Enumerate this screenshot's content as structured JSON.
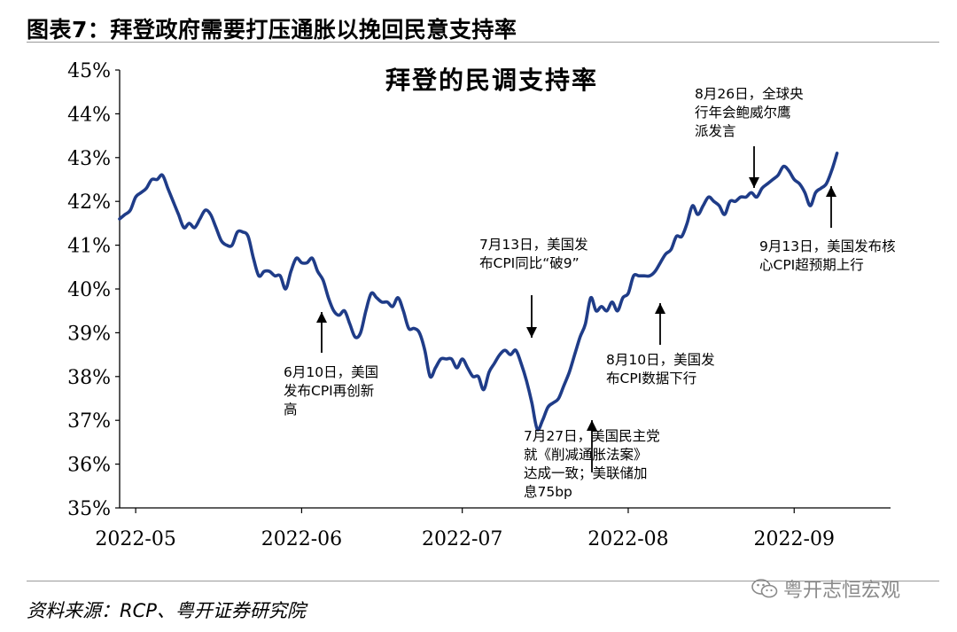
{
  "figure": {
    "title": "图表7：拜登政府需要打压通胀以挽回民意支持率",
    "source": "资料来源：RCP、粤开证券研究院",
    "watermark": "粤开志恒宏观"
  },
  "chart_data": {
    "type": "line",
    "title": "拜登的民调支持率",
    "xlabel": "",
    "ylabel": "",
    "x_ticks": [
      "2022-05",
      "2022-06",
      "2022-07",
      "2022-08",
      "2022-09"
    ],
    "x_tick_days": [
      0,
      31,
      61,
      92,
      123
    ],
    "y_ticks": [
      "35%",
      "36%",
      "37%",
      "38%",
      "39%",
      "40%",
      "41%",
      "42%",
      "43%",
      "44%",
      "45%"
    ],
    "ylim": [
      35,
      45
    ],
    "xlim_days": [
      -3,
      141
    ],
    "series": [
      {
        "name": "拜登的民调支持率",
        "color": "#1f3c88",
        "points": [
          [
            -3,
            41.6
          ],
          [
            -2,
            41.7
          ],
          [
            -1,
            41.8
          ],
          [
            0,
            42.1
          ],
          [
            1,
            42.2
          ],
          [
            2,
            42.3
          ],
          [
            3,
            42.5
          ],
          [
            4,
            42.5
          ],
          [
            5,
            42.6
          ],
          [
            6,
            42.3
          ],
          [
            7,
            42.0
          ],
          [
            8,
            41.7
          ],
          [
            9,
            41.4
          ],
          [
            10,
            41.5
          ],
          [
            11,
            41.4
          ],
          [
            12,
            41.6
          ],
          [
            13,
            41.8
          ],
          [
            14,
            41.7
          ],
          [
            15,
            41.4
          ],
          [
            16,
            41.1
          ],
          [
            17,
            41.0
          ],
          [
            18,
            41.0
          ],
          [
            19,
            41.3
          ],
          [
            20,
            41.3
          ],
          [
            21,
            41.2
          ],
          [
            22,
            40.7
          ],
          [
            23,
            40.3
          ],
          [
            24,
            40.4
          ],
          [
            25,
            40.4
          ],
          [
            26,
            40.3
          ],
          [
            27,
            40.3
          ],
          [
            28,
            40.0
          ],
          [
            29,
            40.4
          ],
          [
            30,
            40.7
          ],
          [
            31,
            40.6
          ],
          [
            32,
            40.6
          ],
          [
            33,
            40.7
          ],
          [
            34,
            40.4
          ],
          [
            35,
            40.2
          ],
          [
            36,
            39.8
          ],
          [
            37,
            39.5
          ],
          [
            38,
            39.4
          ],
          [
            39,
            39.5
          ],
          [
            40,
            39.2
          ],
          [
            41,
            38.9
          ],
          [
            42,
            39.0
          ],
          [
            43,
            39.5
          ],
          [
            44,
            39.9
          ],
          [
            45,
            39.8
          ],
          [
            46,
            39.7
          ],
          [
            47,
            39.7
          ],
          [
            48,
            39.6
          ],
          [
            49,
            39.8
          ],
          [
            50,
            39.5
          ],
          [
            51,
            39.1
          ],
          [
            52,
            39.1
          ],
          [
            53,
            39.0
          ],
          [
            54,
            38.6
          ],
          [
            55,
            38.0
          ],
          [
            56,
            38.2
          ],
          [
            57,
            38.4
          ],
          [
            58,
            38.4
          ],
          [
            59,
            38.4
          ],
          [
            60,
            38.2
          ],
          [
            61,
            38.4
          ],
          [
            62,
            38.2
          ],
          [
            63,
            38.0
          ],
          [
            64,
            38.0
          ],
          [
            65,
            37.7
          ],
          [
            66,
            38.1
          ],
          [
            67,
            38.3
          ],
          [
            68,
            38.5
          ],
          [
            69,
            38.6
          ],
          [
            70,
            38.5
          ],
          [
            71,
            38.6
          ],
          [
            72,
            38.3
          ],
          [
            73,
            37.9
          ],
          [
            74,
            37.4
          ],
          [
            75,
            36.8
          ],
          [
            76,
            37.0
          ],
          [
            77,
            37.3
          ],
          [
            78,
            37.4
          ],
          [
            79,
            37.5
          ],
          [
            80,
            37.8
          ],
          [
            81,
            38.1
          ],
          [
            82,
            38.5
          ],
          [
            83,
            38.9
          ],
          [
            84,
            39.2
          ],
          [
            85,
            39.8
          ],
          [
            86,
            39.5
          ],
          [
            87,
            39.6
          ],
          [
            88,
            39.5
          ],
          [
            89,
            39.7
          ],
          [
            90,
            39.5
          ],
          [
            91,
            39.8
          ],
          [
            92,
            39.9
          ],
          [
            93,
            40.3
          ],
          [
            94,
            40.3
          ],
          [
            95,
            40.3
          ],
          [
            96,
            40.3
          ],
          [
            97,
            40.4
          ],
          [
            98,
            40.6
          ],
          [
            99,
            40.8
          ],
          [
            100,
            40.9
          ],
          [
            101,
            41.2
          ],
          [
            102,
            41.2
          ],
          [
            103,
            41.5
          ],
          [
            104,
            41.9
          ],
          [
            105,
            41.7
          ],
          [
            106,
            41.9
          ],
          [
            107,
            42.1
          ],
          [
            108,
            42.0
          ],
          [
            109,
            41.9
          ],
          [
            110,
            41.7
          ],
          [
            111,
            42.0
          ],
          [
            112,
            42.0
          ],
          [
            113,
            42.1
          ],
          [
            114,
            42.1
          ],
          [
            115,
            42.2
          ],
          [
            116,
            42.1
          ],
          [
            117,
            42.3
          ],
          [
            118,
            42.4
          ],
          [
            119,
            42.5
          ],
          [
            120,
            42.6
          ],
          [
            121,
            42.8
          ],
          [
            122,
            42.7
          ],
          [
            123,
            42.5
          ],
          [
            124,
            42.4
          ],
          [
            125,
            42.2
          ],
          [
            126,
            41.9
          ],
          [
            127,
            42.2
          ],
          [
            128,
            42.3
          ],
          [
            129,
            42.4
          ],
          [
            130,
            42.7
          ],
          [
            131,
            43.1
          ]
        ]
      }
    ],
    "annotations": [
      {
        "id": "jun10",
        "lines": [
          "6月10日，美国",
          "发布CPI再创新",
          "高"
        ],
        "day": 40,
        "value": 39.2,
        "arrow": "up"
      },
      {
        "id": "jul13",
        "lines": [
          "7月13日，美国发",
          "布CPI同比“破9”"
        ],
        "day": 73,
        "value": 38.8,
        "arrow": "down"
      },
      {
        "id": "jul27",
        "lines": [
          "7月27日，美国民主党",
          "就《削减通胀法案》",
          "达成一致；美联储加",
          "息75bp"
        ],
        "day": 88,
        "value": 37.9,
        "arrow": "up"
      },
      {
        "id": "aug10",
        "lines": [
          "8月10日，美国发",
          "布CPI数据下行"
        ],
        "day": 101,
        "value": 39.7,
        "arrow": "up"
      },
      {
        "id": "aug26",
        "lines": [
          "8月26日，全球央",
          "行年会鲍威尔鹰",
          "派发言"
        ],
        "day": 117,
        "value": 42.3,
        "arrow": "down"
      },
      {
        "id": "sep13",
        "lines": [
          "9月13日，美国发布核",
          "心CPI超预期上行"
        ],
        "day": 133,
        "value": 42.3,
        "arrow": "up"
      }
    ]
  }
}
